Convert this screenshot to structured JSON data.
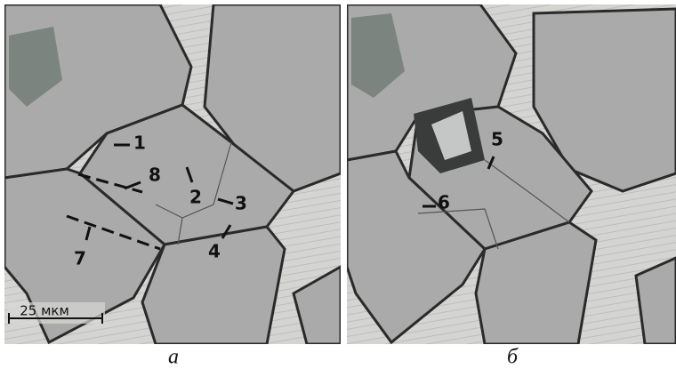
{
  "panels": [
    {
      "caption": "а",
      "labels": [
        "1",
        "8",
        "2",
        "3",
        "7",
        "4"
      ],
      "scale": "25 мкм"
    },
    {
      "caption": "б",
      "labels": [
        "5",
        "6"
      ]
    }
  ]
}
